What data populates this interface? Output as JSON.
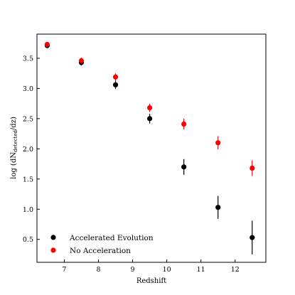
{
  "chart_data": {
    "type": "scatter",
    "xlabel": "Redshift",
    "ylabel_parts": [
      "log (dN",
      "detected",
      "/dz)"
    ],
    "xlim": [
      6.2,
      12.9
    ],
    "ylim": [
      0.12,
      3.9
    ],
    "xticks": [
      7,
      8,
      9,
      10,
      11,
      12
    ],
    "yticks": [
      0.5,
      1.0,
      1.5,
      2.0,
      2.5,
      3.0,
      3.5
    ],
    "ytick_labels": [
      "0.5",
      "1.0",
      "1.5",
      "2.0",
      "2.5",
      "3.0",
      "3.5"
    ],
    "legend_position": "lower-left",
    "series": [
      {
        "name": "Accelerated Evolution",
        "color": "#000000",
        "x": [
          6.5,
          7.5,
          8.5,
          9.5,
          10.5,
          11.5,
          12.5
        ],
        "y": [
          3.71,
          3.43,
          3.06,
          2.5,
          1.7,
          1.03,
          0.53
        ],
        "err": [
          0.04,
          0.05,
          0.07,
          0.08,
          0.13,
          0.19,
          0.28
        ]
      },
      {
        "name": "No Acceleration",
        "color": "#ff0000",
        "x": [
          6.5,
          7.5,
          8.5,
          9.5,
          10.5,
          11.5,
          12.5
        ],
        "y": [
          3.73,
          3.46,
          3.19,
          2.68,
          2.41,
          2.1,
          1.68
        ],
        "err": [
          0.04,
          0.05,
          0.06,
          0.07,
          0.09,
          0.11,
          0.13
        ]
      }
    ]
  }
}
